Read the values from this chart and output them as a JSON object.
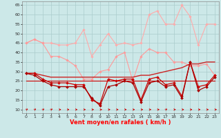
{
  "x": [
    0,
    1,
    2,
    3,
    4,
    5,
    6,
    7,
    8,
    9,
    10,
    11,
    12,
    13,
    14,
    15,
    16,
    17,
    18,
    19,
    20,
    21,
    22,
    23
  ],
  "series": [
    {
      "name": "rafales_max_upper",
      "color": "#ffaaaa",
      "marker": "D",
      "markersize": 1.8,
      "linewidth": 0.8,
      "y": [
        45,
        47,
        45,
        45,
        44,
        44,
        45,
        52,
        38,
        44,
        50,
        44,
        45,
        44,
        45,
        60,
        62,
        55,
        55,
        65,
        59,
        44,
        55,
        55
      ]
    },
    {
      "name": "rafales_mid_upper",
      "color": "#ff9999",
      "marker": "D",
      "markersize": 1.8,
      "linewidth": 0.8,
      "y": [
        45,
        47,
        45,
        38,
        38,
        36,
        33,
        26,
        26,
        30,
        31,
        38,
        40,
        25,
        38,
        42,
        40,
        40,
        35,
        35,
        33,
        33,
        34,
        28
      ]
    },
    {
      "name": "vent_upper_smooth",
      "color": "#cc2222",
      "marker": null,
      "markersize": 0,
      "linewidth": 1.0,
      "y": [
        29,
        29,
        28,
        27,
        27,
        27,
        27,
        27,
        27,
        27,
        27,
        27,
        27,
        27,
        28,
        28,
        29,
        30,
        31,
        32,
        34,
        34,
        35,
        35
      ]
    },
    {
      "name": "vent_upper_marked",
      "color": "#cc0000",
      "marker": "D",
      "markersize": 2.0,
      "linewidth": 0.9,
      "y": [
        29,
        29,
        26,
        24,
        24,
        24,
        23,
        23,
        15,
        13,
        26,
        25,
        26,
        26,
        15,
        26,
        27,
        23,
        24,
        17,
        35,
        22,
        23,
        28
      ]
    },
    {
      "name": "vent_flat",
      "color": "#cc0000",
      "marker": null,
      "markersize": 0,
      "linewidth": 0.8,
      "y": [
        25,
        25,
        25,
        25,
        25,
        25,
        25,
        25,
        25,
        25,
        25,
        25,
        25,
        25,
        25,
        25,
        25,
        25,
        25,
        25,
        25,
        25,
        25,
        25
      ]
    },
    {
      "name": "vent_lower_marked",
      "color": "#aa0000",
      "marker": "D",
      "markersize": 2.0,
      "linewidth": 0.9,
      "y": [
        29,
        28,
        25,
        23,
        22,
        22,
        22,
        22,
        16,
        12,
        22,
        23,
        25,
        24,
        14,
        24,
        25,
        22,
        23,
        16,
        35,
        20,
        22,
        27
      ]
    }
  ],
  "wind_arrows_angled": [
    0,
    1,
    2,
    3,
    17
  ],
  "xlim": [
    -0.5,
    23.5
  ],
  "ylim": [
    8,
    67
  ],
  "yticks": [
    10,
    15,
    20,
    25,
    30,
    35,
    40,
    45,
    50,
    55,
    60,
    65
  ],
  "xticks": [
    0,
    1,
    2,
    3,
    4,
    5,
    6,
    7,
    8,
    9,
    10,
    11,
    12,
    13,
    14,
    15,
    16,
    17,
    18,
    19,
    20,
    21,
    22,
    23
  ],
  "xlabel": "Vent moyen/en rafales ( km/h )",
  "bg_color": "#cce8e8",
  "grid_color": "#aacccc",
  "arrow_color": "#cc0000"
}
